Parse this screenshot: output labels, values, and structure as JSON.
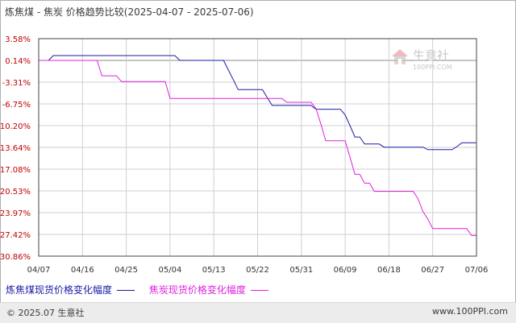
{
  "chart_data": {
    "type": "line",
    "title": "炼焦煤 - 焦炭 价格趋势比较(2025-04-07 - 2025-07-06)",
    "x_tick_labels": [
      "04/07",
      "04/16",
      "04/25",
      "05/04",
      "05/13",
      "05/22",
      "05/31",
      "06/09",
      "06/18",
      "06/27",
      "07/06"
    ],
    "x_range": [
      "2025-04-07",
      "2025-07-06"
    ],
    "y_tick_labels": [
      "3.58%",
      "0.14%",
      "-3.31%",
      "-6.75%",
      "-10.20%",
      "-13.64%",
      "-17.08%",
      "-20.53%",
      "-23.97%",
      "-27.42%",
      "-30.86%"
    ],
    "ylim": [
      -30.86,
      3.58
    ],
    "grid": true,
    "legend_position": "bottom-left",
    "series": [
      {
        "name": "炼焦煤现货价格变化幅度",
        "color": "#1a1aa6",
        "points": [
          [
            "2025-04-07",
            0.14
          ],
          [
            "2025-04-09",
            0.14
          ],
          [
            "2025-04-10",
            0.9
          ],
          [
            "2025-05-05",
            0.9
          ],
          [
            "2025-05-06",
            0.14
          ],
          [
            "2025-05-15",
            0.14
          ],
          [
            "2025-05-16",
            -1.4
          ],
          [
            "2025-05-17",
            -2.9
          ],
          [
            "2025-05-18",
            -4.5
          ],
          [
            "2025-05-23",
            -4.5
          ],
          [
            "2025-05-24",
            -5.8
          ],
          [
            "2025-05-25",
            -7.0
          ],
          [
            "2025-06-02",
            -7.0
          ],
          [
            "2025-06-03",
            -7.6
          ],
          [
            "2025-06-08",
            -7.6
          ],
          [
            "2025-06-09",
            -8.5
          ],
          [
            "2025-06-10",
            -10.2
          ],
          [
            "2025-06-11",
            -12.0
          ],
          [
            "2025-06-12",
            -12.0
          ],
          [
            "2025-06-13",
            -13.1
          ],
          [
            "2025-06-16",
            -13.1
          ],
          [
            "2025-06-17",
            -13.6
          ],
          [
            "2025-06-25",
            -13.6
          ],
          [
            "2025-06-26",
            -14.0
          ],
          [
            "2025-07-01",
            -14.0
          ],
          [
            "2025-07-02",
            -13.5
          ],
          [
            "2025-07-03",
            -12.9
          ],
          [
            "2025-07-06",
            -12.9
          ]
        ]
      },
      {
        "name": "焦炭现货价格变化幅度",
        "color": "#e020e0",
        "points": [
          [
            "2025-04-07",
            0.14
          ],
          [
            "2025-04-19",
            0.14
          ],
          [
            "2025-04-20",
            -2.3
          ],
          [
            "2025-04-23",
            -2.3
          ],
          [
            "2025-04-24",
            -3.2
          ],
          [
            "2025-05-03",
            -3.2
          ],
          [
            "2025-05-04",
            -5.9
          ],
          [
            "2025-05-27",
            -5.9
          ],
          [
            "2025-05-28",
            -6.5
          ],
          [
            "2025-06-02",
            -6.5
          ],
          [
            "2025-06-03",
            -7.5
          ],
          [
            "2025-06-04",
            -9.9
          ],
          [
            "2025-06-05",
            -12.6
          ],
          [
            "2025-06-09",
            -12.6
          ],
          [
            "2025-06-10",
            -15.2
          ],
          [
            "2025-06-11",
            -17.9
          ],
          [
            "2025-06-12",
            -17.9
          ],
          [
            "2025-06-13",
            -19.3
          ],
          [
            "2025-06-14",
            -19.3
          ],
          [
            "2025-06-15",
            -20.6
          ],
          [
            "2025-06-23",
            -20.6
          ],
          [
            "2025-06-24",
            -21.8
          ],
          [
            "2025-06-25",
            -23.8
          ],
          [
            "2025-06-26",
            -25.0
          ],
          [
            "2025-06-27",
            -26.5
          ],
          [
            "2025-07-04",
            -26.5
          ],
          [
            "2025-07-05",
            -27.6
          ],
          [
            "2025-07-06",
            -27.6
          ]
        ]
      }
    ]
  },
  "legend": {
    "items": [
      {
        "label": "炼焦煤现货价格变化幅度",
        "color": "#1a1aa6"
      },
      {
        "label": "焦炭现货价格变化幅度",
        "color": "#e020e0"
      }
    ]
  },
  "footer": {
    "copyright": "© 2025.07 生意社",
    "site": "www.100PPI.com"
  },
  "watermark": {
    "brand": "生意社",
    "url": "100PPI.COM"
  },
  "colors": {
    "axis_labels": "#c00000",
    "grid": "#cfcfcf",
    "plot_border": "#444444"
  }
}
